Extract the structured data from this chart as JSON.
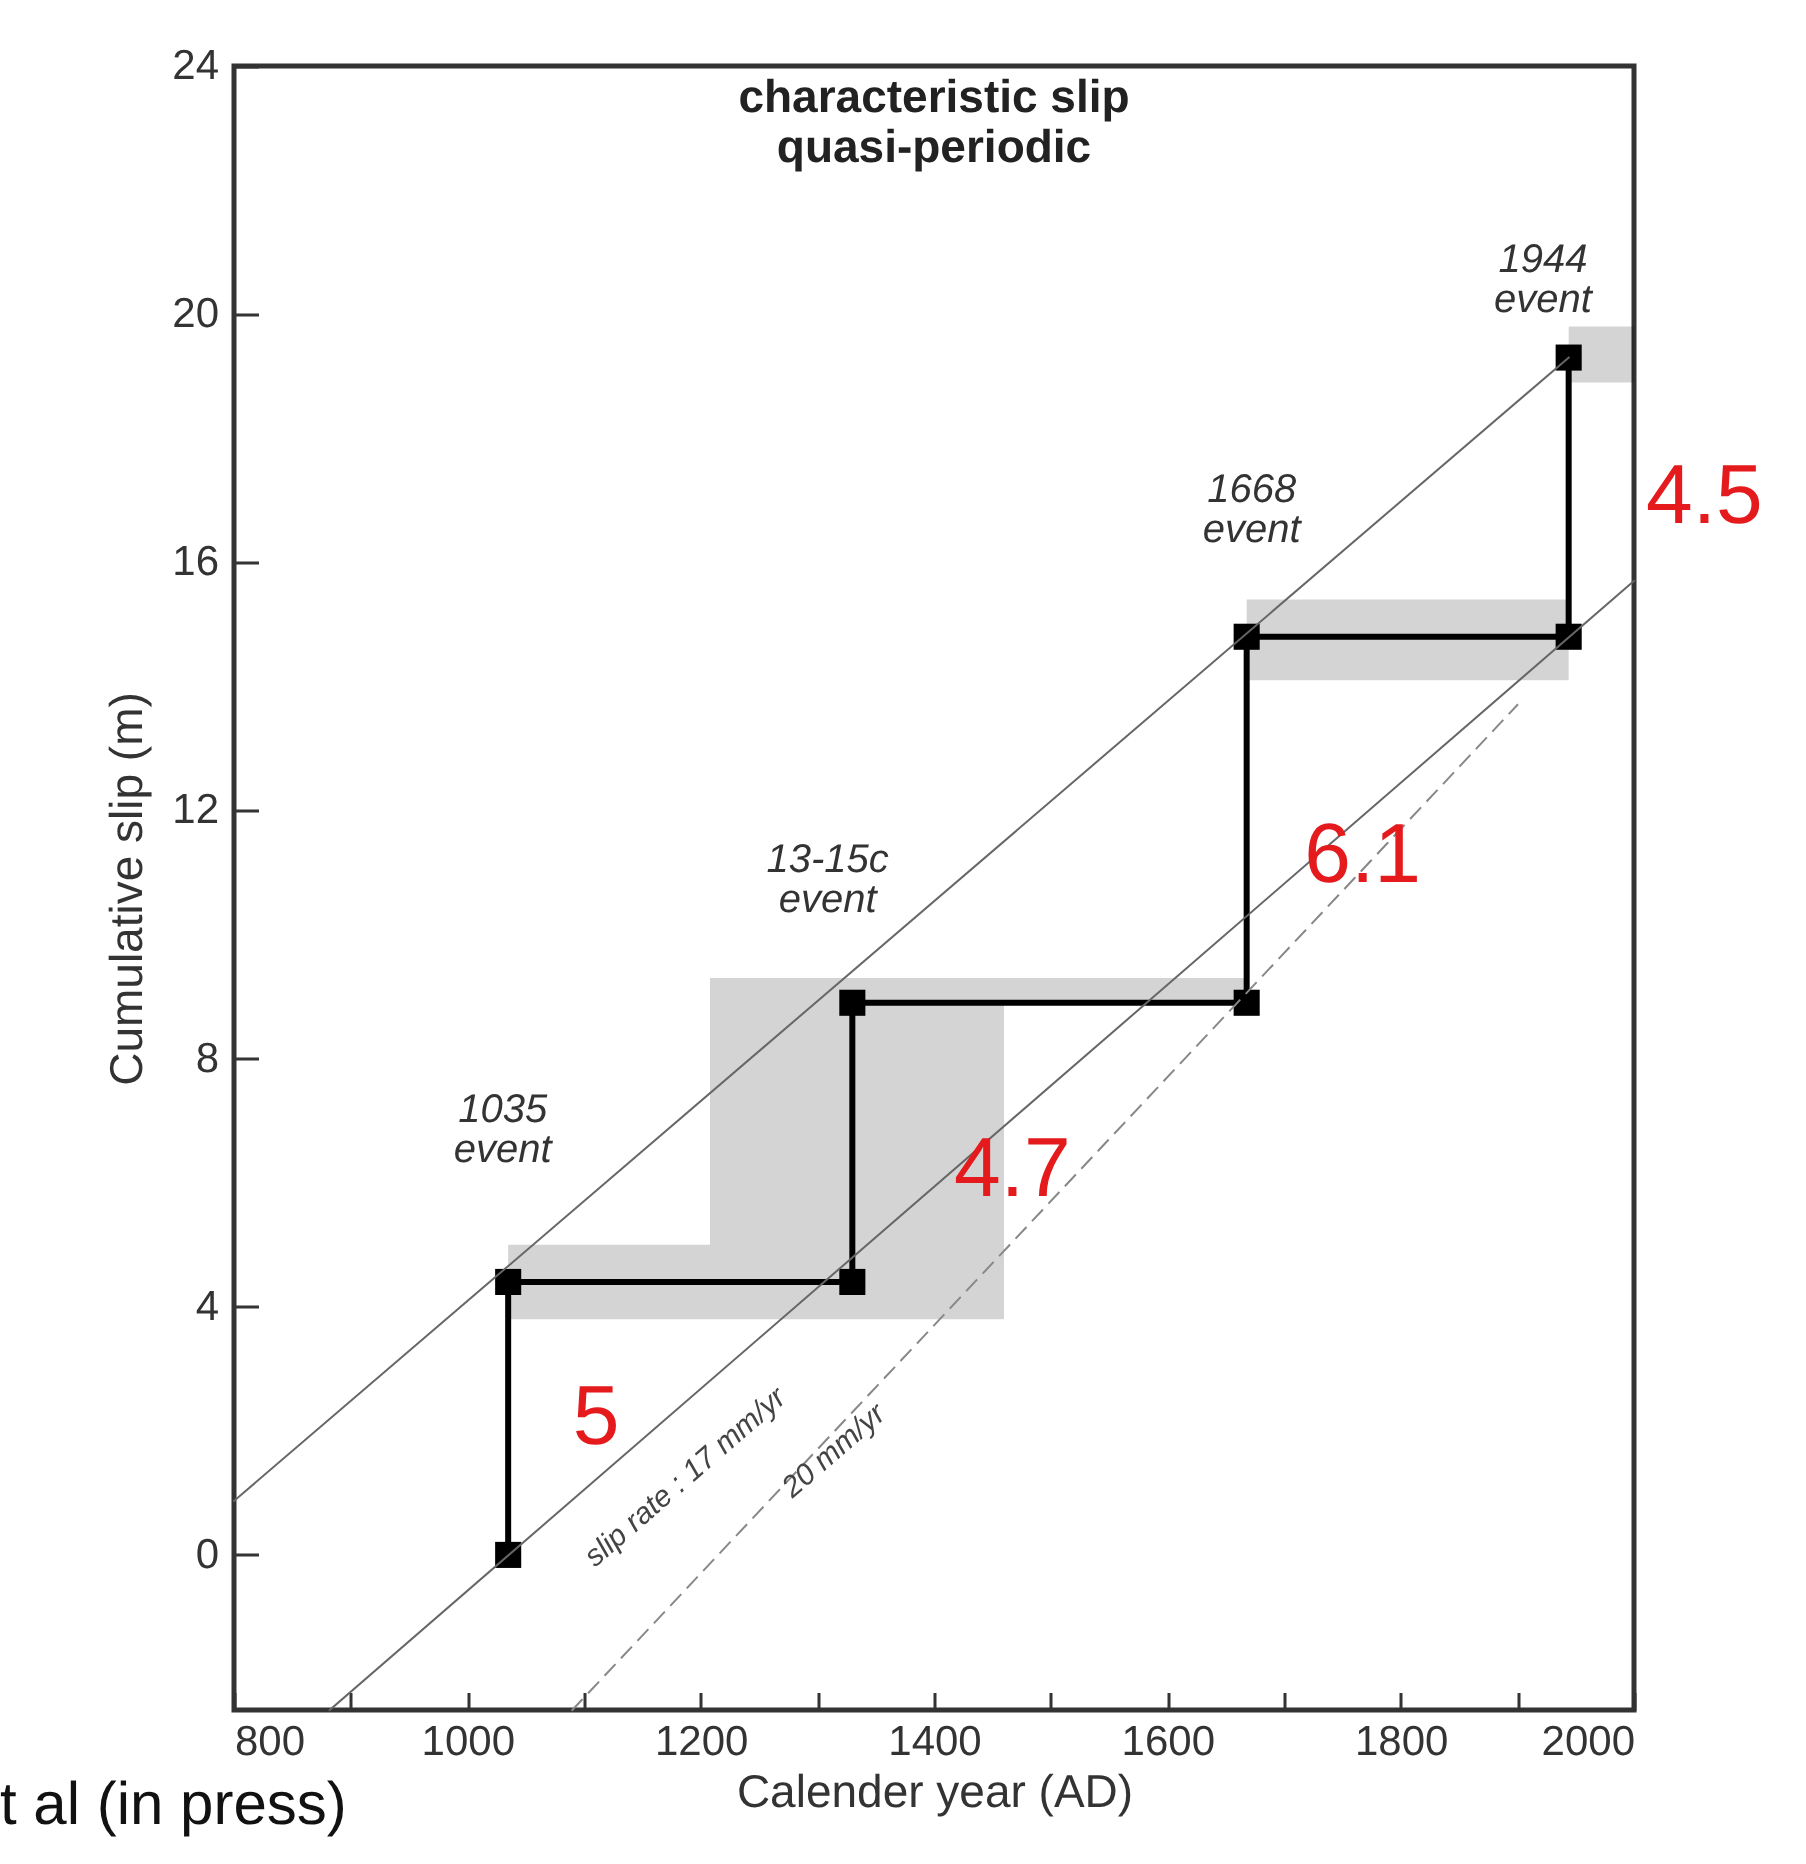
{
  "chart_data": {
    "type": "line",
    "title": "characteristic slip",
    "subtitle": "quasi-periodic",
    "xlabel": "Calender year (AD)",
    "ylabel": "Cumulative slip (m)",
    "xlim": [
      800,
      2000
    ],
    "ylim": [
      -2.5,
      24
    ],
    "xticks": [
      800,
      {
        "value": 900,
        "label": null
      },
      1000,
      {
        "value": 1100,
        "label": null
      },
      1200,
      {
        "value": 1300,
        "label": null
      },
      1400,
      {
        "value": 1500,
        "label": null
      },
      1600,
      {
        "value": 1700,
        "label": null
      },
      1800,
      {
        "value": 1900,
        "label": null
      },
      2000
    ],
    "yticks": [
      0,
      4,
      8,
      12,
      16,
      20,
      24
    ],
    "grid": false,
    "series": [
      {
        "type": "line",
        "color": "#000000",
        "line_style": "solid",
        "marker": "none",
        "x": [
          1035,
          1035,
          1208,
          1208,
          1330,
          1330,
          1460,
          1460,
          1668,
          1668,
          1944,
          1944,
          2000
        ],
        "values": [
          0,
          4.4,
          4.4,
          4.4,
          4.4,
          8.9,
          8.9,
          8.9,
          8.9,
          14.8,
          14.8,
          19.3,
          null
        ],
        "lower": [
          null,
          3.8,
          3.8,
          3.8,
          3.8,
          3.8,
          3.8,
          8.9,
          8.9,
          14.1,
          14.1,
          18.9,
          18.9
        ],
        "upper": [
          null,
          5.0,
          5.0,
          9.3,
          9.3,
          9.3,
          9.3,
          9.3,
          9.3,
          15.4,
          15.4,
          19.8,
          19.8
        ]
      },
      {
        "type": "scatter",
        "color": "#000000",
        "marker": "square",
        "x": [
          1035,
          1035,
          1330,
          1330,
          1668,
          1668,
          1944,
          1944
        ],
        "values": [
          0,
          4.4,
          4.4,
          8.9,
          8.9,
          14.8,
          14.8,
          19.3
        ]
      },
      {
        "type": "line",
        "color": "#666666",
        "line_style": "solid",
        "marker": "none",
        "x": [
          800,
          1944
        ],
        "values": [
          0.87,
          19.3
        ]
      },
      {
        "type": "line",
        "color": "#666666",
        "line_style": "solid",
        "marker": "none",
        "x": [
          882,
          2000
        ],
        "values": [
          -2.5,
          15.7
        ]
      },
      {
        "type": "line",
        "color": "#888888",
        "line_style": "dashed",
        "marker": "none",
        "x": [
          1090,
          1900
        ],
        "values": [
          -2.5,
          13.7
        ]
      }
    ],
    "annotations": [
      "1035\nevent",
      "13-15c\nevent",
      "1668\nevent",
      "1944\nevent",
      {
        "text": "5",
        "x": 1035,
        "y": 2.2
      },
      {
        "text": "4.7",
        "x": 1330,
        "y": 6.65
      },
      {
        "text": "6.1",
        "x": 1668,
        "y": 11.85
      },
      {
        "text": "4.5",
        "x": 1944,
        "y": 17.05
      },
      "slip rate : 17 mm/yr",
      "20 mm/yr",
      "t al (in press)"
    ]
  }
}
